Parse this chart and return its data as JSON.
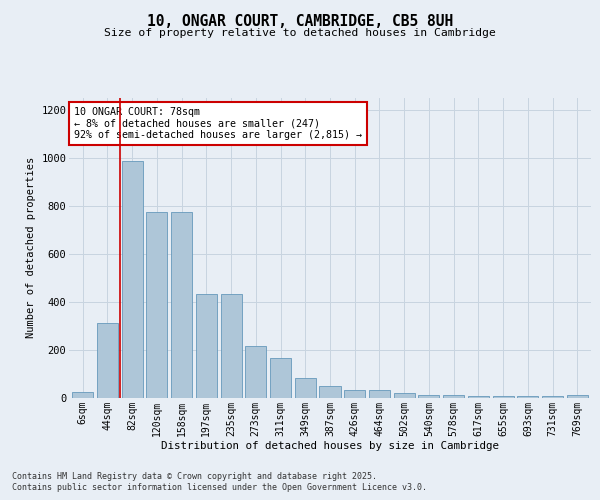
{
  "title_line1": "10, ONGAR COURT, CAMBRIDGE, CB5 8UH",
  "title_line2": "Size of property relative to detached houses in Cambridge",
  "xlabel": "Distribution of detached houses by size in Cambridge",
  "ylabel": "Number of detached properties",
  "categories": [
    "6sqm",
    "44sqm",
    "82sqm",
    "120sqm",
    "158sqm",
    "197sqm",
    "235sqm",
    "273sqm",
    "311sqm",
    "349sqm",
    "387sqm",
    "426sqm",
    "464sqm",
    "502sqm",
    "540sqm",
    "578sqm",
    "617sqm",
    "655sqm",
    "693sqm",
    "731sqm",
    "769sqm"
  ],
  "values": [
    22,
    310,
    985,
    775,
    775,
    430,
    430,
    215,
    165,
    80,
    50,
    30,
    30,
    18,
    10,
    10,
    5,
    5,
    5,
    5,
    10
  ],
  "bar_color": "#aec6d8",
  "bar_edge_color": "#6699bb",
  "grid_color": "#c8d4e0",
  "background_color": "#e8eef5",
  "vline_x_index": 2,
  "annotation_text_line1": "10 ONGAR COURT: 78sqm",
  "annotation_text_line2": "← 8% of detached houses are smaller (247)",
  "annotation_text_line3": "92% of semi-detached houses are larger (2,815) →",
  "annotation_box_color": "#ffffff",
  "annotation_box_edge_color": "#cc0000",
  "vline_color": "#cc0000",
  "ylim": [
    0,
    1250
  ],
  "yticks": [
    0,
    200,
    400,
    600,
    800,
    1000,
    1200
  ],
  "footer_line1": "Contains HM Land Registry data © Crown copyright and database right 2025.",
  "footer_line2": "Contains public sector information licensed under the Open Government Licence v3.0."
}
